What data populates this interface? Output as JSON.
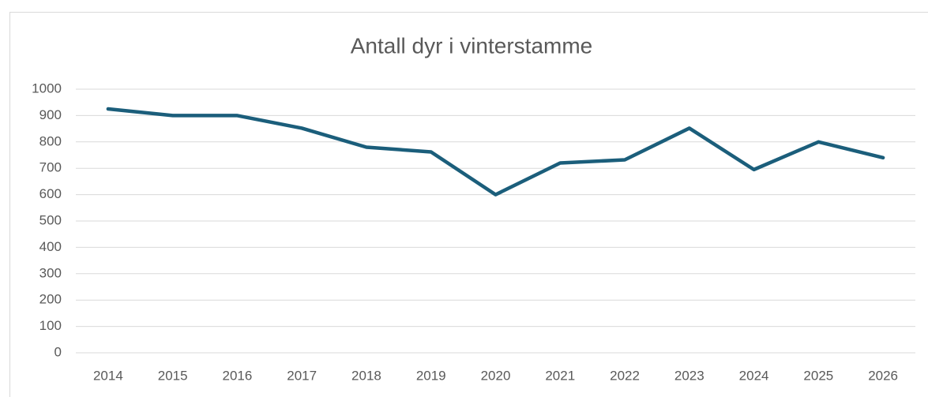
{
  "chart_data": {
    "type": "line",
    "title": "Antall dyr i vinterstamme",
    "categories": [
      "2014",
      "2015",
      "2016",
      "2017",
      "2018",
      "2019",
      "2020",
      "2021",
      "2022",
      "2023",
      "2024",
      "2025",
      "2026"
    ],
    "series": [
      {
        "name": "Antall dyr",
        "color": "#1b5e7b",
        "values": [
          925,
          900,
          900,
          852,
          780,
          762,
          600,
          720,
          732,
          852,
          695,
          800,
          740
        ]
      }
    ],
    "ylim": [
      0,
      1000
    ],
    "yticks": [
      0,
      100,
      200,
      300,
      400,
      500,
      600,
      700,
      800,
      900,
      1000
    ],
    "grid": true
  }
}
